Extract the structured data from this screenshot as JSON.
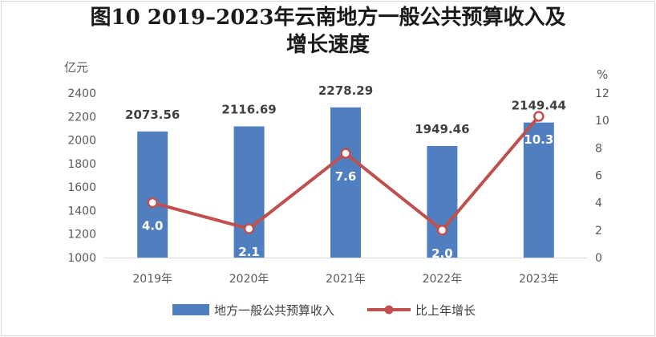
{
  "title_line1": "图10  2019–2023年云南地方一般公共预算收入及",
  "title_line2": "增长速度",
  "chart_data": {
    "type": "bar",
    "categories": [
      "2019年",
      "2020年",
      "2021年",
      "2022年",
      "2023年"
    ],
    "series": [
      {
        "name": "地方一般公共预算收入",
        "type": "bar",
        "axis": "left",
        "color": "#4f7fc0",
        "values": [
          2073.56,
          2116.69,
          2278.29,
          1949.46,
          2149.44
        ],
        "labels": [
          "2073.56",
          "2116.69",
          "2278.29",
          "1949.46",
          "2149.44"
        ]
      },
      {
        "name": "比上年增长",
        "type": "line",
        "axis": "right",
        "color": "#c0504d",
        "values": [
          4.0,
          2.1,
          7.6,
          2.0,
          10.3
        ],
        "labels": [
          "4.0",
          "2.1",
          "7.6",
          "2.0",
          "10.3"
        ]
      }
    ],
    "y_left": {
      "unit": "亿元",
      "range": [
        1000,
        2400
      ],
      "ticks": [
        "1000",
        "1200",
        "1400",
        "1600",
        "1800",
        "2000",
        "2200",
        "2400"
      ]
    },
    "y_right": {
      "unit": "%",
      "range": [
        0,
        12
      ],
      "ticks": [
        "0",
        "2",
        "4",
        "6",
        "8",
        "10",
        "12"
      ]
    },
    "grid": false,
    "legend_position": "bottom"
  }
}
